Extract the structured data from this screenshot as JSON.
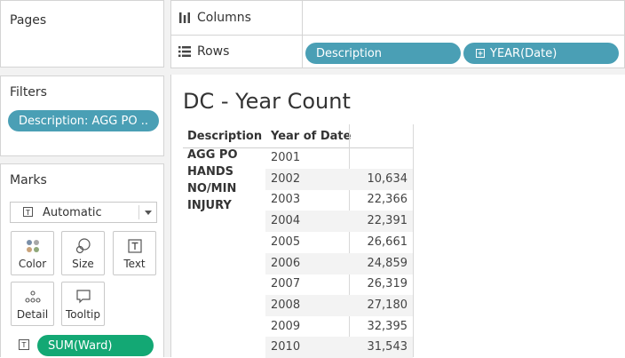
{
  "panes": {
    "pages_title": "Pages",
    "filters_title": "Filters",
    "filter_pill": "Description: AGG PO ..",
    "marks_title": "Marks",
    "mark_type": "Automatic",
    "buttons": {
      "color": "Color",
      "size": "Size",
      "text": "Text",
      "detail": "Detail",
      "tooltip": "Tooltip"
    },
    "text_field": "SUM(Ward)"
  },
  "shelves": {
    "columns_label": "Columns",
    "rows_label": "Rows",
    "rows_pills": [
      "Description",
      "YEAR(Date)"
    ]
  },
  "viz": {
    "title": "DC - Year Count",
    "col_headers": [
      "Description",
      "Year of Date"
    ],
    "description_value": "AGG PO HANDS NO/MIN INJURY",
    "rows": [
      {
        "year": "2001",
        "value": ""
      },
      {
        "year": "2002",
        "value": "10,634"
      },
      {
        "year": "2003",
        "value": "22,366"
      },
      {
        "year": "2004",
        "value": "22,391"
      },
      {
        "year": "2005",
        "value": "26,661"
      },
      {
        "year": "2006",
        "value": "24,859"
      },
      {
        "year": "2007",
        "value": "26,319"
      },
      {
        "year": "2008",
        "value": "27,180"
      },
      {
        "year": "2009",
        "value": "32,395"
      },
      {
        "year": "2010",
        "value": "31,543"
      }
    ]
  },
  "colors": {
    "pill_blue": "#4a9fb5",
    "pill_green": "#13a874"
  }
}
